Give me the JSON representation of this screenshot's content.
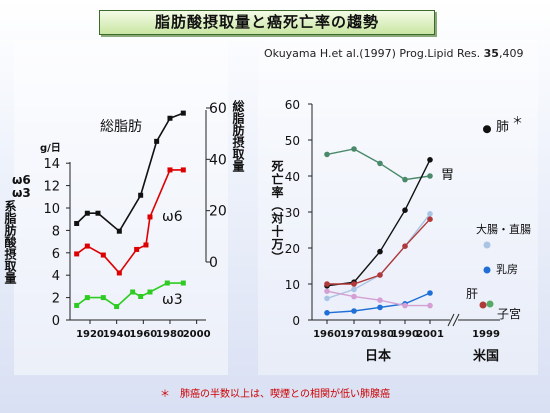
{
  "title": "脂肪酸摂取量と癌死亡率の趨勢",
  "citation_prefix": "Okuyama H.et al.(1997) Prog.Lipid Res. ",
  "citation_bold": "35",
  "citation_suffix": ",409",
  "footnote": "＊　肺癌の半数以上は、喫煙との相関が低い肺腺癌",
  "chart_data": [
    {
      "type": "line",
      "unit_label": "g/日",
      "left_axis_label_top": "ω6",
      "left_axis_label_mid": "ω3",
      "left_axis_label": "系脂肪酸摂取量",
      "right_axis_label": "総脂肪摂取量",
      "x_ticks": [
        "1920",
        "1940",
        "1960",
        "1980",
        "2000"
      ],
      "y_left_ticks": [
        "0",
        "2",
        "4",
        "6",
        "8",
        "10",
        "12",
        "14"
      ],
      "y_right_ticks": [
        "0",
        "20",
        "40",
        "60"
      ],
      "ylim_left": [
        0,
        14
      ],
      "ylim_right": [
        0,
        60
      ],
      "series": [
        {
          "name": "総脂肪",
          "axis": "right",
          "color": "#111111",
          "x": [
            1910,
            1918,
            1926,
            1942,
            1958,
            1970,
            1980,
            1990
          ],
          "y": [
            15,
            19,
            19,
            12,
            26,
            47,
            56,
            58
          ]
        },
        {
          "name": "ω6",
          "axis": "left",
          "color": "#dd0000",
          "x": [
            1910,
            1918,
            1930,
            1942,
            1955,
            1962,
            1965,
            1980,
            1990
          ],
          "y": [
            5.9,
            6.6,
            5.8,
            4.2,
            6.3,
            6.7,
            9.2,
            13.4,
            13.4
          ]
        },
        {
          "name": "ω3",
          "axis": "left",
          "color": "#2ecc22",
          "x": [
            1910,
            1918,
            1930,
            1940,
            1952,
            1958,
            1965,
            1978,
            1990
          ],
          "y": [
            1.3,
            2.0,
            2.0,
            1.2,
            2.5,
            2.1,
            2.5,
            3.3,
            3.3
          ]
        }
      ]
    },
    {
      "type": "line",
      "ylabel": "死亡率（対十万）",
      "x_ticks": [
        "1960",
        "1970",
        "1980",
        "1990",
        "2001",
        "1999"
      ],
      "y_ticks": [
        "0",
        "10",
        "20",
        "30",
        "40",
        "50",
        "60"
      ],
      "ylim": [
        0,
        60
      ],
      "group_labels": {
        "japan": "日本",
        "usa": "米国"
      },
      "series": [
        {
          "name": "胃",
          "color": "#4a8a6a",
          "x": [
            1960,
            1970,
            1980,
            1990,
            2001
          ],
          "y": [
            46,
            47.5,
            43.5,
            39,
            40
          ]
        },
        {
          "name": "肺＊",
          "color": "#111111",
          "x": [
            1960,
            1970,
            1980,
            1990,
            2001
          ],
          "y": [
            9.5,
            10.5,
            19,
            30.5,
            44.5
          ]
        },
        {
          "name": "大腸・直腸",
          "color": "#aac4e4",
          "x": [
            1960,
            1970,
            1980,
            1990,
            2001
          ],
          "y": [
            6,
            8.5,
            12.5,
            20.5,
            29.5
          ]
        },
        {
          "name": "乳房",
          "color": "#1f6fd6",
          "x": [
            1960,
            1970,
            1980,
            1990,
            2001
          ],
          "y": [
            2,
            2.5,
            3.5,
            4.5,
            7.5
          ]
        },
        {
          "name": "肝",
          "color": "#b03a3a",
          "x": [
            1960,
            1970,
            1980,
            1990,
            2001
          ],
          "y": [
            10,
            10,
            12.5,
            20.5,
            28
          ]
        },
        {
          "name": "子宮",
          "color": "#d4a0d4",
          "x": [
            1960,
            1970,
            1980,
            1990,
            2001
          ],
          "y": [
            8,
            6.5,
            5.5,
            4,
            4
          ]
        }
      ],
      "usa_1999": [
        {
          "name": "肺",
          "marker_star": "＊",
          "y": 53,
          "color": "#111111"
        },
        {
          "name": "大腸・直腸",
          "y": 21,
          "color": "#aac4e4"
        },
        {
          "name": "乳房",
          "y": 14,
          "color": "#1f6fd6"
        },
        {
          "name": "肝",
          "y": 4,
          "color": "#b03a3a"
        },
        {
          "name": "子宮",
          "y": 4,
          "color": "#55aa66"
        }
      ]
    }
  ]
}
